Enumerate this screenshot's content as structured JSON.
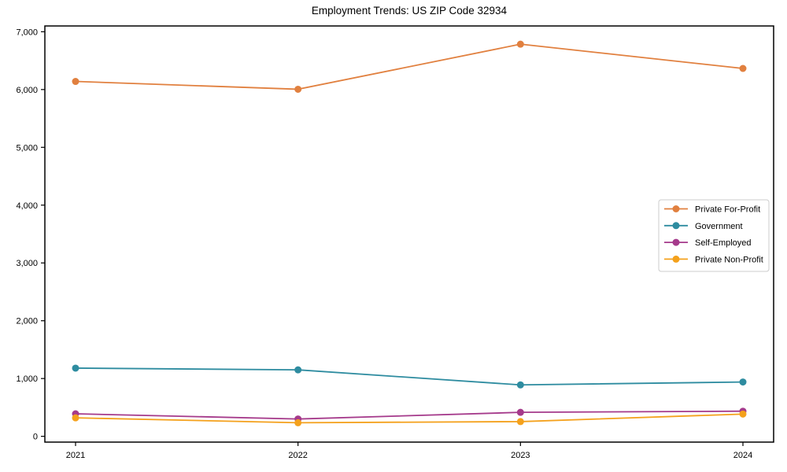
{
  "page": {
    "background_color": "#ffffff",
    "text_color": "#000000",
    "frame_color": "#000000",
    "legend_border_color": "#cccccc"
  },
  "chart_data": {
    "type": "line",
    "title": "Employment Trends: US ZIP Code 32934",
    "xlabel": "",
    "ylabel": "",
    "categories": [
      "2021",
      "2022",
      "2023",
      "2024"
    ],
    "series": [
      {
        "name": "Private For-Profit",
        "color": "#e1803f",
        "values": [
          6140,
          6005,
          6785,
          6365
        ]
      },
      {
        "name": "Government",
        "color": "#2e8ca0",
        "values": [
          1180,
          1150,
          890,
          940
        ]
      },
      {
        "name": "Self-Employed",
        "color": "#a53a8b",
        "values": [
          390,
          300,
          415,
          435
        ]
      },
      {
        "name": "Private Non-Profit",
        "color": "#f4a11c",
        "values": [
          320,
          235,
          255,
          385
        ]
      }
    ],
    "ylim": [
      -100,
      7100
    ],
    "yticks": [
      {
        "value": 0,
        "label": "0"
      },
      {
        "value": 1000,
        "label": "1,000"
      },
      {
        "value": 2000,
        "label": "2,000"
      },
      {
        "value": 3000,
        "label": "3,000"
      },
      {
        "value": 4000,
        "label": "4,000"
      },
      {
        "value": 5000,
        "label": "5,000"
      },
      {
        "value": 6000,
        "label": "6,000"
      },
      {
        "value": 7000,
        "label": "7,000"
      }
    ],
    "grid": false,
    "marker": "circle",
    "legend_position": "center right"
  }
}
